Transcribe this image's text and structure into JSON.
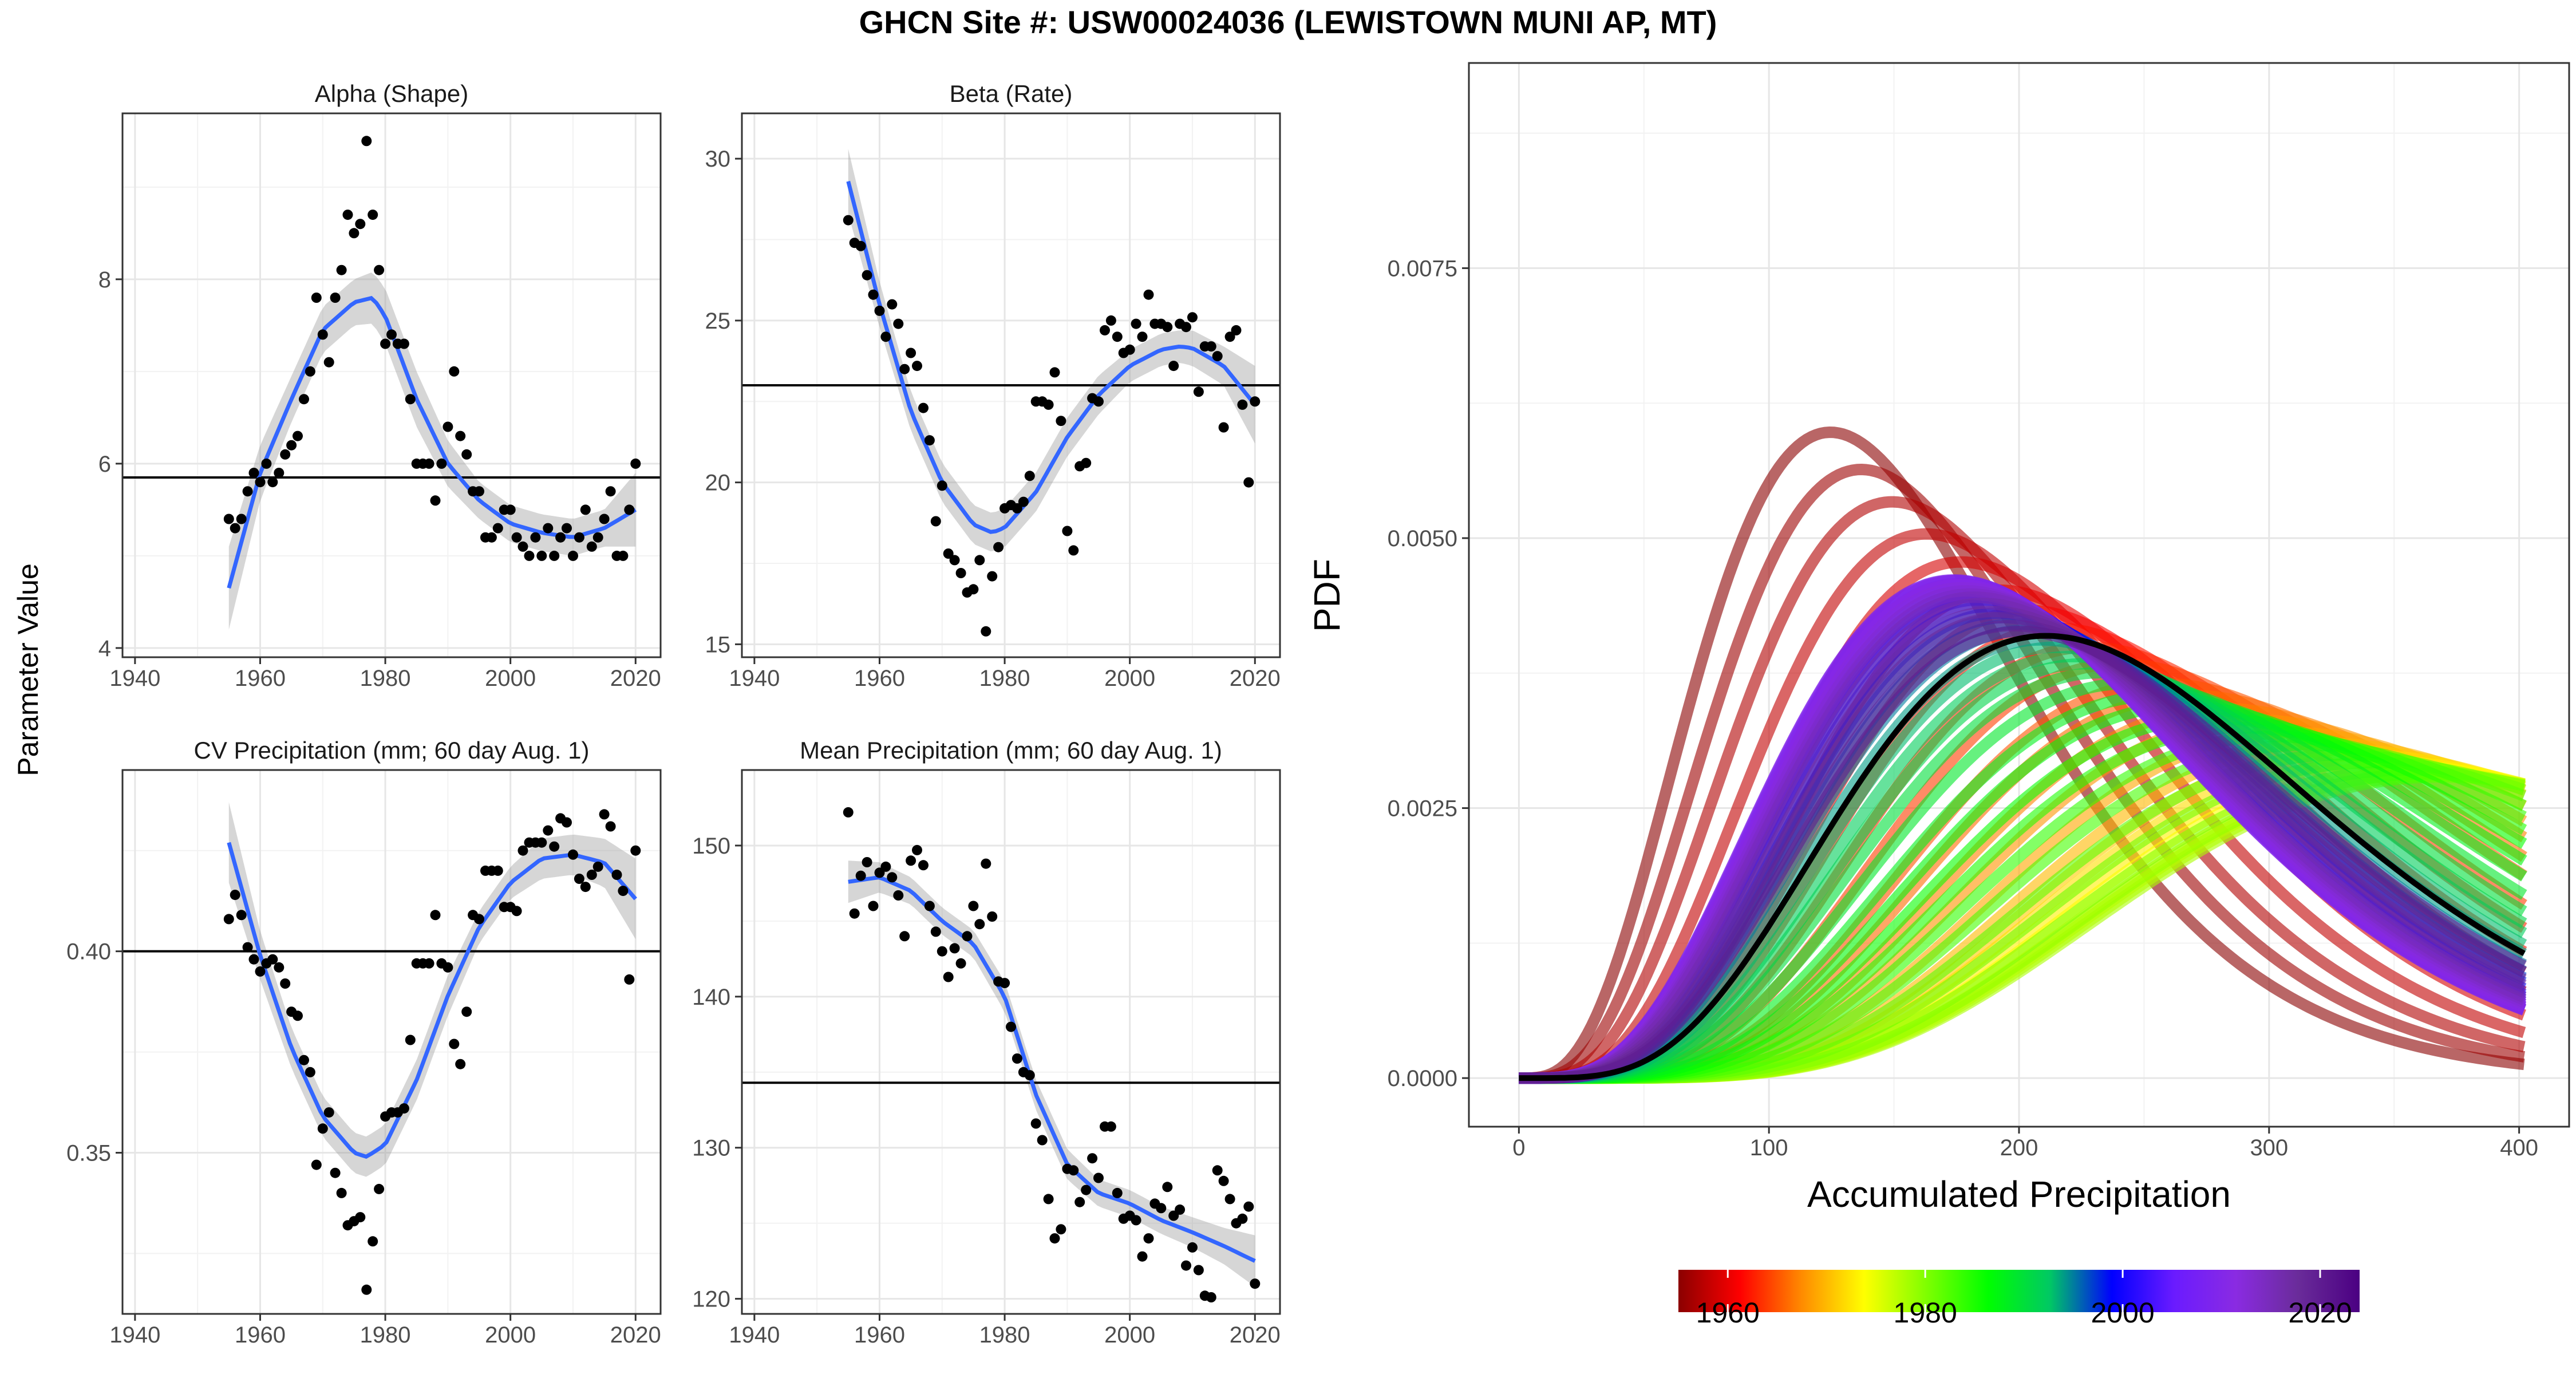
{
  "figure": {
    "title": "GHCN Site #: USW00024036 (LEWISTOWN MUNI AP, MT)",
    "shared_ylabel": "Parameter Value"
  },
  "chart_data": [
    {
      "id": "alpha",
      "type": "scatter",
      "title": "Alpha (Shape)",
      "xlabel": "",
      "ylabel": "",
      "xlim": [
        1938,
        2024
      ],
      "ylim": [
        3.9,
        9.8
      ],
      "xticks": [
        1940,
        1960,
        1980,
        2000,
        2020
      ],
      "yticks": [
        4,
        6,
        8
      ],
      "grid": true,
      "hline": 5.85,
      "points": {
        "x": [
          1955,
          1956,
          1957,
          1958,
          1959,
          1960,
          1961,
          1962,
          1963,
          1964,
          1965,
          1966,
          1967,
          1968,
          1969,
          1970,
          1971,
          1972,
          1973,
          1974,
          1975,
          1976,
          1977,
          1978,
          1979,
          1980,
          1981,
          1982,
          1983,
          1984,
          1985,
          1986,
          1987,
          1988,
          1989,
          1990,
          1991,
          1992,
          1993,
          1994,
          1995,
          1996,
          1997,
          1998,
          1999,
          2000,
          2001,
          2002,
          2003,
          2004,
          2005,
          2006,
          2007,
          2008,
          2009,
          2010,
          2011,
          2012,
          2013,
          2014,
          2015,
          2016,
          2017,
          2018,
          2019,
          2020
        ],
        "y": [
          5.4,
          5.3,
          5.4,
          5.7,
          5.9,
          5.8,
          6.0,
          5.8,
          5.9,
          6.1,
          6.2,
          6.3,
          6.7,
          7.0,
          7.8,
          7.4,
          7.1,
          7.8,
          8.1,
          8.7,
          8.5,
          8.6,
          9.5,
          8.7,
          8.1,
          7.3,
          7.4,
          7.3,
          7.3,
          6.7,
          6.0,
          6.0,
          6.0,
          5.6,
          6.0,
          6.4,
          7.0,
          6.3,
          6.1,
          5.7,
          5.7,
          5.2,
          5.2,
          5.3,
          5.5,
          5.5,
          5.2,
          5.1,
          5.0,
          5.2,
          5.0,
          5.3,
          5.0,
          5.2,
          5.3,
          5.0,
          5.2,
          5.5,
          5.1,
          5.2,
          5.4,
          5.7,
          5.0,
          5.0,
          5.5,
          6.0
        ]
      },
      "trend": {
        "x": [
          1955,
          1960,
          1965,
          1970,
          1975,
          1978,
          1980,
          1985,
          1990,
          1995,
          2000,
          2005,
          2010,
          2015,
          2020
        ],
        "y": [
          4.65,
          5.9,
          6.7,
          7.45,
          7.75,
          7.8,
          7.6,
          6.7,
          6.0,
          5.6,
          5.35,
          5.25,
          5.2,
          5.3,
          5.5
        ],
        "lower": [
          4.2,
          5.6,
          6.45,
          7.2,
          7.5,
          7.52,
          7.3,
          6.4,
          5.75,
          5.4,
          5.15,
          5.05,
          5.0,
          5.1,
          5.1
        ],
        "upper": [
          5.1,
          6.2,
          6.95,
          7.7,
          8.0,
          8.08,
          7.9,
          7.0,
          6.25,
          5.8,
          5.55,
          5.45,
          5.4,
          5.5,
          5.9
        ]
      }
    },
    {
      "id": "beta",
      "type": "scatter",
      "title": "Beta (Rate)",
      "xlabel": "",
      "ylabel": "",
      "xlim": [
        1938,
        2024
      ],
      "ylim": [
        14.6,
        31.4
      ],
      "xticks": [
        1940,
        1960,
        1980,
        2000,
        2020
      ],
      "yticks": [
        15,
        20,
        25,
        30
      ],
      "grid": true,
      "hline": 23.0,
      "points": {
        "x": [
          1955,
          1956,
          1957,
          1958,
          1959,
          1960,
          1961,
          1962,
          1963,
          1964,
          1965,
          1966,
          1967,
          1968,
          1969,
          1970,
          1971,
          1972,
          1973,
          1974,
          1975,
          1976,
          1977,
          1978,
          1979,
          1980,
          1981,
          1982,
          1983,
          1984,
          1985,
          1986,
          1987,
          1988,
          1989,
          1990,
          1991,
          1992,
          1993,
          1994,
          1995,
          1996,
          1997,
          1998,
          1999,
          2000,
          2001,
          2002,
          2003,
          2004,
          2005,
          2006,
          2007,
          2008,
          2009,
          2010,
          2011,
          2012,
          2013,
          2014,
          2015,
          2016,
          2017,
          2018,
          2019,
          2020
        ],
        "y": [
          28.1,
          27.4,
          27.3,
          26.4,
          25.8,
          25.3,
          24.5,
          25.5,
          24.9,
          23.5,
          24.0,
          23.6,
          22.3,
          21.3,
          18.8,
          19.9,
          17.8,
          17.6,
          17.2,
          16.6,
          16.7,
          17.6,
          15.4,
          17.1,
          18.0,
          19.2,
          19.3,
          19.2,
          19.4,
          20.2,
          22.5,
          22.5,
          22.4,
          23.4,
          21.9,
          18.5,
          17.9,
          20.5,
          20.6,
          22.6,
          22.5,
          24.7,
          25.0,
          24.5,
          24.0,
          24.1,
          24.9,
          24.5,
          25.8,
          24.9,
          24.9,
          24.8,
          23.6,
          24.9,
          24.8,
          25.1,
          22.8,
          24.2,
          24.2,
          23.9,
          21.7,
          24.5,
          24.7,
          22.4,
          20.0,
          22.5
        ]
      },
      "trend": {
        "x": [
          1955,
          1960,
          1965,
          1970,
          1975,
          1978,
          1980,
          1985,
          1990,
          1995,
          2000,
          2005,
          2008,
          2010,
          2015,
          2020
        ],
        "y": [
          29.3,
          25.5,
          22.2,
          20.0,
          18.7,
          18.45,
          18.6,
          19.7,
          21.4,
          22.7,
          23.6,
          24.1,
          24.2,
          24.15,
          23.6,
          22.4
        ],
        "lower": [
          28.3,
          24.8,
          21.6,
          19.4,
          18.1,
          17.85,
          18.0,
          19.1,
          20.8,
          22.1,
          23.1,
          23.6,
          23.7,
          23.6,
          23.0,
          21.2
        ],
        "upper": [
          30.3,
          26.2,
          22.8,
          20.6,
          19.3,
          19.05,
          19.2,
          20.3,
          22.0,
          23.3,
          24.1,
          24.6,
          24.7,
          24.7,
          24.2,
          23.6
        ]
      }
    },
    {
      "id": "cv",
      "type": "scatter",
      "title": "CV Precipitation (mm; 60 day Aug. 1)",
      "xlabel": "",
      "ylabel": "",
      "xlim": [
        1938,
        2024
      ],
      "ylim": [
        0.31,
        0.445
      ],
      "xticks": [
        1940,
        1960,
        1980,
        2000,
        2020
      ],
      "yticks": [
        0.35,
        0.4
      ],
      "ytick_labels": [
        "0.35",
        "0.40"
      ],
      "grid": true,
      "hline": 0.4,
      "points": {
        "x": [
          1955,
          1956,
          1957,
          1958,
          1959,
          1960,
          1961,
          1962,
          1963,
          1964,
          1965,
          1966,
          1967,
          1968,
          1969,
          1970,
          1971,
          1972,
          1973,
          1974,
          1975,
          1976,
          1977,
          1978,
          1979,
          1980,
          1981,
          1982,
          1983,
          1984,
          1985,
          1986,
          1987,
          1988,
          1989,
          1990,
          1991,
          1992,
          1993,
          1994,
          1995,
          1996,
          1997,
          1998,
          1999,
          2000,
          2001,
          2002,
          2003,
          2004,
          2005,
          2006,
          2007,
          2008,
          2009,
          2010,
          2011,
          2012,
          2013,
          2014,
          2015,
          2016,
          2017,
          2018,
          2019,
          2020
        ],
        "y": [
          0.408,
          0.414,
          0.409,
          0.401,
          0.398,
          0.395,
          0.397,
          0.398,
          0.396,
          0.392,
          0.385,
          0.384,
          0.373,
          0.37,
          0.347,
          0.356,
          0.36,
          0.345,
          0.34,
          0.332,
          0.333,
          0.334,
          0.316,
          0.328,
          0.341,
          0.359,
          0.36,
          0.36,
          0.361,
          0.378,
          0.397,
          0.397,
          0.397,
          0.409,
          0.397,
          0.396,
          0.377,
          0.372,
          0.385,
          0.409,
          0.408,
          0.42,
          0.42,
          0.42,
          0.411,
          0.411,
          0.41,
          0.425,
          0.427,
          0.427,
          0.427,
          0.43,
          0.426,
          0.433,
          0.432,
          0.424,
          0.418,
          0.416,
          0.419,
          0.421,
          0.434,
          0.431,
          0.419,
          0.415,
          0.393,
          0.425
        ]
      },
      "trend": {
        "x": [
          1955,
          1960,
          1965,
          1970,
          1975,
          1977,
          1980,
          1985,
          1990,
          1995,
          2000,
          2005,
          2010,
          2015,
          2020
        ],
        "y": [
          0.427,
          0.399,
          0.376,
          0.359,
          0.35,
          0.349,
          0.352,
          0.368,
          0.389,
          0.406,
          0.417,
          0.423,
          0.424,
          0.422,
          0.413
        ],
        "lower": [
          0.417,
          0.393,
          0.371,
          0.354,
          0.345,
          0.344,
          0.347,
          0.363,
          0.384,
          0.402,
          0.413,
          0.418,
          0.419,
          0.416,
          0.403
        ],
        "upper": [
          0.437,
          0.405,
          0.381,
          0.364,
          0.355,
          0.354,
          0.357,
          0.373,
          0.394,
          0.41,
          0.421,
          0.428,
          0.429,
          0.428,
          0.423
        ]
      }
    },
    {
      "id": "mean",
      "type": "scatter",
      "title": "Mean Precipitation (mm; 60 day Aug. 1)",
      "xlabel": "",
      "ylabel": "",
      "xlim": [
        1938,
        2024
      ],
      "ylim": [
        119,
        155
      ],
      "xticks": [
        1940,
        1960,
        1980,
        2000,
        2020
      ],
      "yticks": [
        120,
        130,
        140,
        150
      ],
      "grid": true,
      "hline": 134.3,
      "points": {
        "x": [
          1955,
          1956,
          1957,
          1958,
          1959,
          1960,
          1961,
          1962,
          1963,
          1964,
          1965,
          1966,
          1967,
          1968,
          1969,
          1970,
          1971,
          1972,
          1973,
          1974,
          1975,
          1976,
          1977,
          1978,
          1979,
          1980,
          1981,
          1982,
          1983,
          1984,
          1985,
          1986,
          1987,
          1988,
          1989,
          1990,
          1991,
          1992,
          1993,
          1994,
          1995,
          1996,
          1997,
          1998,
          1999,
          2000,
          2001,
          2002,
          2003,
          2004,
          2005,
          2006,
          2007,
          2008,
          2009,
          2010,
          2011,
          2012,
          2013,
          2014,
          2015,
          2016,
          2017,
          2018,
          2019,
          2020
        ],
        "y": [
          152.2,
          145.5,
          148.0,
          148.9,
          146.0,
          148.2,
          148.6,
          147.9,
          146.7,
          144.0,
          149.0,
          149.7,
          148.7,
          146.0,
          144.3,
          143.0,
          141.3,
          143.2,
          142.2,
          144.0,
          146.0,
          144.8,
          148.8,
          145.3,
          141.0,
          140.9,
          138.0,
          135.9,
          135.0,
          134.8,
          131.6,
          130.5,
          126.6,
          124.0,
          124.6,
          128.6,
          128.5,
          126.4,
          127.2,
          129.3,
          128.0,
          131.4,
          131.4,
          127.0,
          125.3,
          125.5,
          125.2,
          122.8,
          124.0,
          126.3,
          126.0,
          127.4,
          125.5,
          125.9,
          122.2,
          123.4,
          121.9,
          120.2,
          120.1,
          128.5,
          127.8,
          126.6,
          125.0,
          125.3,
          126.1,
          121.0
        ]
      },
      "trend": {
        "x": [
          1955,
          1960,
          1965,
          1970,
          1975,
          1980,
          1985,
          1990,
          1995,
          2000,
          2005,
          2010,
          2015,
          2020
        ],
        "y": [
          147.6,
          147.9,
          147.0,
          145.0,
          143.5,
          140.0,
          133.5,
          128.9,
          127.0,
          126.3,
          125.2,
          124.4,
          123.5,
          122.5
        ],
        "lower": [
          146.2,
          146.9,
          146.1,
          144.1,
          142.6,
          139.0,
          132.5,
          127.9,
          126.1,
          125.4,
          124.3,
          123.4,
          122.3,
          120.8
        ],
        "upper": [
          149.0,
          148.9,
          147.9,
          145.9,
          144.4,
          141.0,
          134.5,
          129.9,
          127.9,
          127.2,
          126.1,
          125.4,
          124.7,
          124.2
        ]
      }
    },
    {
      "id": "pdf",
      "type": "line",
      "title": "",
      "xlabel": "Accumulated Precipitation",
      "ylabel": "PDF",
      "xlim": [
        -20,
        420
      ],
      "ylim": [
        -0.00045,
        0.0094
      ],
      "xticks": [
        0,
        100,
        200,
        300,
        400
      ],
      "yticks": [
        0,
        0.0025,
        0.005,
        0.0075
      ],
      "ytick_labels": [
        "0.0000",
        "0.0025",
        "0.0050",
        "0.0075"
      ],
      "grid": true,
      "x_range_curves": [
        0,
        402
      ],
      "yearly_curves": {
        "year": [
          1955,
          1956,
          1957,
          1958,
          1959,
          1960,
          1961,
          1962,
          1963,
          1964,
          1965,
          1966,
          1967,
          1968,
          1969,
          1970,
          1971,
          1972,
          1973,
          1974,
          1975,
          1976,
          1977,
          1978,
          1979,
          1980,
          1981,
          1982,
          1983,
          1984,
          1985,
          1986,
          1987,
          1988,
          1989,
          1990,
          1991,
          1992,
          1993,
          1994,
          1995,
          1996,
          1997,
          1998,
          1999,
          2000,
          2001,
          2002,
          2003,
          2004,
          2005,
          2006,
          2007,
          2008,
          2009,
          2010,
          2011,
          2012,
          2013,
          2014,
          2015,
          2016,
          2017,
          2018,
          2019,
          2020
        ],
        "alpha": [
          4.65,
          4.9,
          5.15,
          5.4,
          5.65,
          5.9,
          6.05,
          6.2,
          6.35,
          6.5,
          6.7,
          6.85,
          7.0,
          7.15,
          7.3,
          7.45,
          7.52,
          7.6,
          7.65,
          7.7,
          7.75,
          7.77,
          7.78,
          7.8,
          7.7,
          7.6,
          7.42,
          7.24,
          7.06,
          6.88,
          6.7,
          6.56,
          6.42,
          6.28,
          6.14,
          6.0,
          5.92,
          5.84,
          5.76,
          5.68,
          5.6,
          5.55,
          5.5,
          5.45,
          5.4,
          5.35,
          5.33,
          5.31,
          5.29,
          5.27,
          5.25,
          5.24,
          5.23,
          5.22,
          5.21,
          5.2,
          5.22,
          5.24,
          5.26,
          5.28,
          5.3,
          5.34,
          5.38,
          5.42,
          5.46,
          5.5
        ],
        "beta_x1000": [
          29.3,
          28.5,
          27.8,
          27.0,
          26.3,
          25.5,
          24.8,
          24.2,
          23.5,
          22.9,
          22.2,
          21.8,
          21.3,
          20.9,
          20.4,
          20.0,
          19.7,
          19.5,
          19.2,
          19.0,
          18.7,
          18.6,
          18.5,
          18.45,
          18.5,
          18.6,
          18.8,
          19.0,
          19.3,
          19.5,
          19.7,
          20.0,
          20.4,
          20.7,
          21.1,
          21.4,
          21.7,
          21.9,
          22.2,
          22.4,
          22.7,
          22.9,
          23.1,
          23.2,
          23.4,
          23.6,
          23.7,
          23.8,
          23.9,
          24.0,
          24.1,
          24.1,
          24.2,
          24.2,
          24.2,
          24.15,
          24.0,
          23.9,
          23.8,
          23.7,
          23.6,
          23.4,
          23.1,
          22.9,
          22.6,
          22.4
        ]
      },
      "mean_curve": {
        "alpha": 5.85,
        "beta_x1000": 23.0,
        "color": "#000000"
      },
      "colorbar": {
        "ticks": [
          1960,
          1980,
          2000,
          2020
        ],
        "range": [
          1955,
          2024
        ],
        "colors": [
          "#8b0000",
          "#ff0000",
          "#ff8c00",
          "#ffff00",
          "#7fff00",
          "#00ff00",
          "#00c864",
          "#0000ff",
          "#6a1bff",
          "#8a2be2",
          "#6a2c9a",
          "#4b0082"
        ]
      }
    }
  ]
}
